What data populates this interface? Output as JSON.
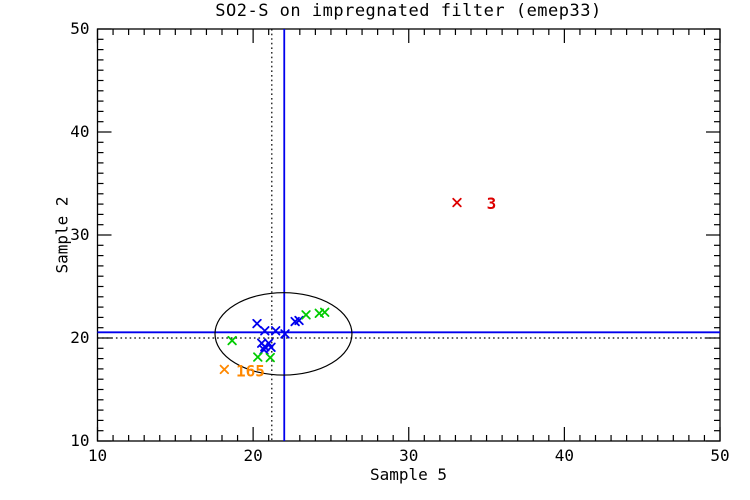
{
  "chart_data": {
    "type": "scatter",
    "title": "SO2-S on impregnated filter (emep33)",
    "xlabel": "Sample 5",
    "ylabel": "Sample 2",
    "xlim": [
      10,
      50
    ],
    "ylim": [
      10,
      50
    ],
    "xticks": [
      10,
      20,
      30,
      40,
      50
    ],
    "yticks": [
      10,
      20,
      30,
      40,
      50
    ],
    "minor_tick_step": 1,
    "grid": false,
    "legend": false,
    "marker": "x",
    "series": [
      {
        "name": "blue-points",
        "color": "#0000ee",
        "points": [
          [
            20.25,
            21.4
          ],
          [
            20.75,
            20.7
          ],
          [
            21.45,
            20.7
          ],
          [
            22.05,
            20.4
          ],
          [
            22.7,
            21.6
          ],
          [
            22.95,
            21.7
          ],
          [
            20.55,
            19.5
          ],
          [
            21.0,
            19.5
          ],
          [
            20.75,
            19.15
          ],
          [
            21.15,
            19.1
          ],
          [
            20.7,
            18.85
          ]
        ]
      },
      {
        "name": "green-points",
        "color": "#00cc00",
        "points": [
          [
            18.65,
            19.75
          ],
          [
            23.4,
            22.25
          ],
          [
            24.25,
            22.4
          ],
          [
            24.6,
            22.5
          ],
          [
            20.3,
            18.15
          ],
          [
            21.1,
            18.1
          ]
        ]
      },
      {
        "name": "orange-outlier",
        "color": "#ff8800",
        "points": [
          [
            18.15,
            16.95
          ]
        ],
        "label": "165",
        "label_pos": [
          18.9,
          16.85
        ]
      },
      {
        "name": "red-outlier",
        "color": "#dd0000",
        "points": [
          [
            33.1,
            33.15
          ]
        ],
        "label": "3",
        "label_pos": [
          35.0,
          33.1
        ]
      }
    ],
    "median_lines": {
      "style": "solid",
      "color": "#0000ee",
      "x": 22.0,
      "y": 20.55
    },
    "reference_lines": {
      "style": "dotted",
      "color": "#000000",
      "x": 21.2,
      "y": 20.0
    },
    "ellipse": {
      "cx": 21.95,
      "cy": 20.4,
      "rx": 4.4,
      "ry": 4.0,
      "color": "#000000"
    },
    "axis_color": "#000000"
  }
}
